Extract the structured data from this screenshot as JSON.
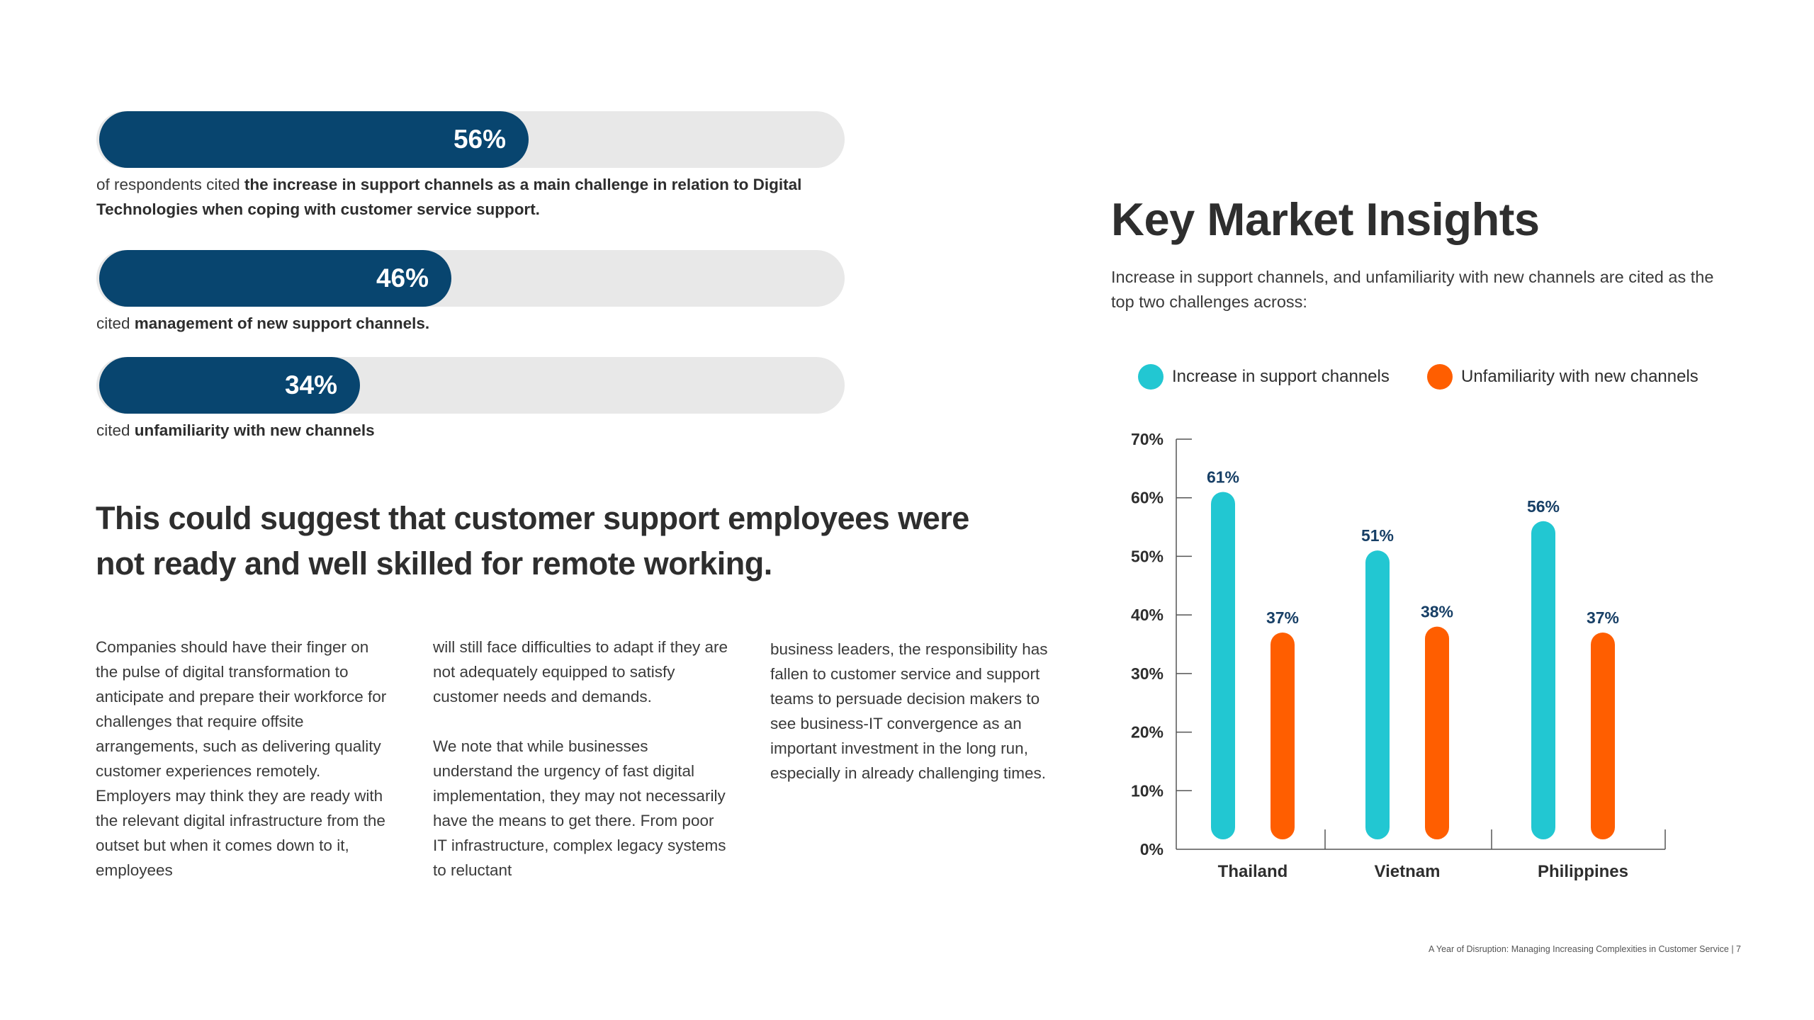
{
  "stats": [
    {
      "percent_label": "56%",
      "value": 56,
      "caption_pre": "of respondents cited ",
      "caption_bold": "the increase in support channels as a main challenge in relation to Digital Technologies when coping with customer service support."
    },
    {
      "percent_label": "46%",
      "value": 46,
      "caption_pre": "cited ",
      "caption_bold": "management of new support channels."
    },
    {
      "percent_label": "34%",
      "value": 34,
      "caption_pre": "cited ",
      "caption_bold": "unfamiliarity with new channels"
    }
  ],
  "headline": "This could suggest that customer support employees were not ready and well skilled for remote working.",
  "columns": {
    "col1_p1": "Companies should have their finger on the pulse of digital transformation to anticipate and prepare their workforce for challenges that require offsite arrangements, such as delivering quality customer experiences remotely. Employers may think they are ready with the relevant digital infrastructure from the outset but when it comes down to it, employees",
    "col2_p1": "will still face difficulties to adapt if they are not adequately equipped to satisfy customer needs and demands.",
    "col2_p2": "We note that while businesses understand the urgency of fast digital implementation, they may not necessarily have the means to get there. From poor IT infrastructure, complex legacy systems to reluctant",
    "col3_p1": "business leaders, the responsibility has fallen to customer service and support teams to persuade decision makers to see business-IT convergence as an important investment in the long run, especially in already challenging times."
  },
  "insights": {
    "title": "Key Market Insights",
    "subtitle": "Increase in support channels, and unfamiliarity with new channels are cited as the top two challenges across:"
  },
  "colors": {
    "navy": "#08456f",
    "teal": "#22c7d2",
    "orange": "#ff5e00",
    "track": "#e8e8e8"
  },
  "chart_data": {
    "type": "bar",
    "categories": [
      "Thailand",
      "Vietnam",
      "Philippines"
    ],
    "series": [
      {
        "name": "Increase in support channels",
        "values": [
          61,
          51,
          56
        ],
        "labels": [
          "61%",
          "51%",
          "56%"
        ],
        "color": "#22c7d2"
      },
      {
        "name": "Unfamiliarity with new channels",
        "values": [
          37,
          38,
          37
        ],
        "labels": [
          "37%",
          "38%",
          "37%"
        ],
        "color": "#ff5e00"
      }
    ],
    "yticks": [
      "0%",
      "10%",
      "20%",
      "30%",
      "40%",
      "50%",
      "60%",
      "70%"
    ],
    "ylim": [
      0,
      70
    ],
    "grid": false,
    "legend": "top"
  },
  "footer": {
    "text": "A Year of Disruption: Managing Increasing Complexities in Customer Service",
    "page": "7"
  }
}
